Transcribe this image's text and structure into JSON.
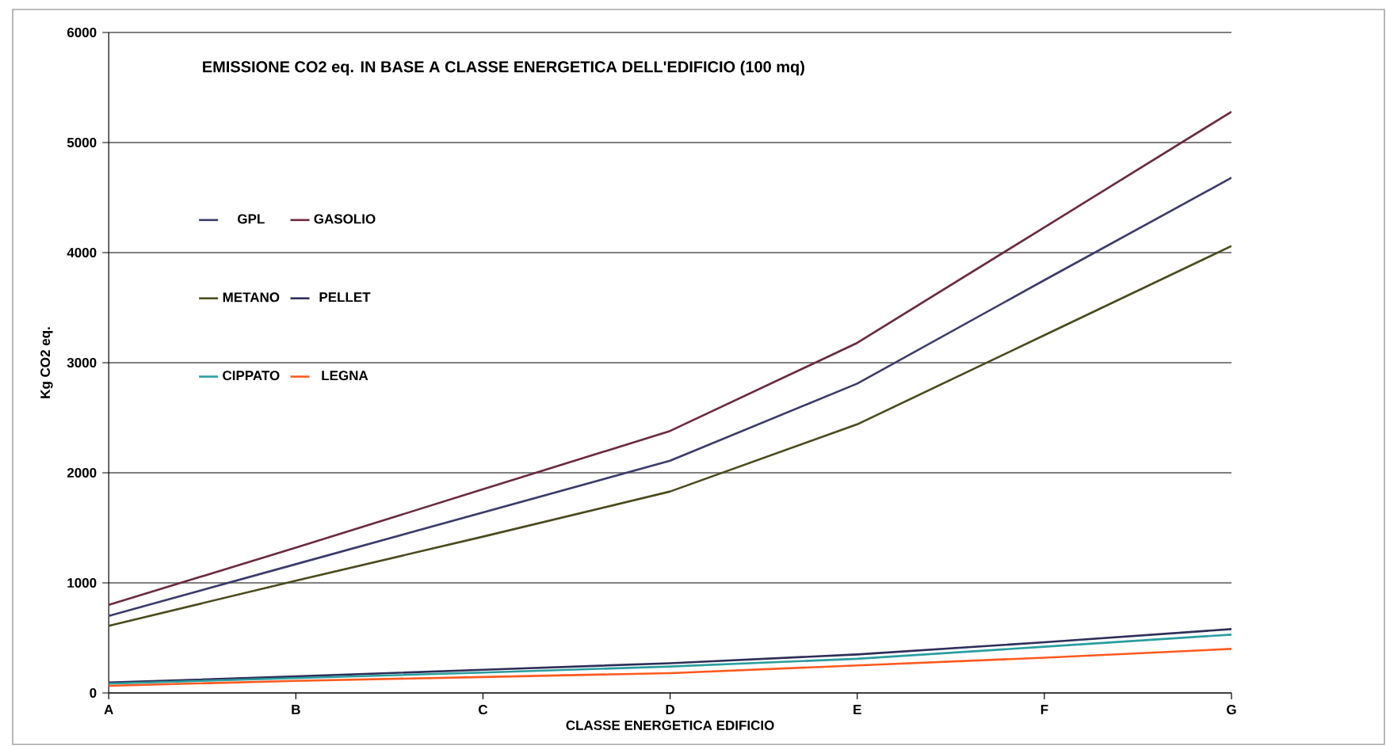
{
  "chart_data": {
    "type": "line",
    "title": "EMISSIONE CO2 eq. IN BASE A CLASSE ENERGETICA DELL'EDIFICIO (100 mq)",
    "xlabel": "CLASSE ENERGETICA EDIFICIO",
    "ylabel": "Kg CO2 eq.",
    "categories": [
      "A",
      "B",
      "C",
      "D",
      "E",
      "F",
      "G"
    ],
    "series": [
      {
        "name": "GPL",
        "color": "#3b3b6a",
        "values": [
          700,
          1170,
          1640,
          2110,
          2810,
          3750,
          4680
        ]
      },
      {
        "name": "GASOLIO",
        "color": "#6b2a3e",
        "values": [
          800,
          1320,
          1850,
          2380,
          3180,
          4230,
          5280
        ]
      },
      {
        "name": "METANO",
        "color": "#4a4a1e",
        "values": [
          610,
          1020,
          1420,
          1830,
          2440,
          3250,
          4060
        ]
      },
      {
        "name": "PELLET",
        "color": "#2e2e58",
        "values": [
          95,
          150,
          210,
          270,
          350,
          460,
          580
        ]
      },
      {
        "name": "CIPPATO",
        "color": "#2a9e9e",
        "values": [
          85,
          135,
          185,
          240,
          310,
          420,
          530
        ]
      },
      {
        "name": "LEGNA",
        "color": "#ff5a1e",
        "values": [
          65,
          110,
          145,
          180,
          250,
          320,
          400
        ]
      }
    ],
    "ylim": [
      0,
      6000
    ],
    "yticks": [
      0,
      1000,
      2000,
      3000,
      4000,
      5000,
      6000
    ],
    "grid": "y",
    "legend": "top left",
    "marker": "none",
    "line_style": "solid"
  }
}
